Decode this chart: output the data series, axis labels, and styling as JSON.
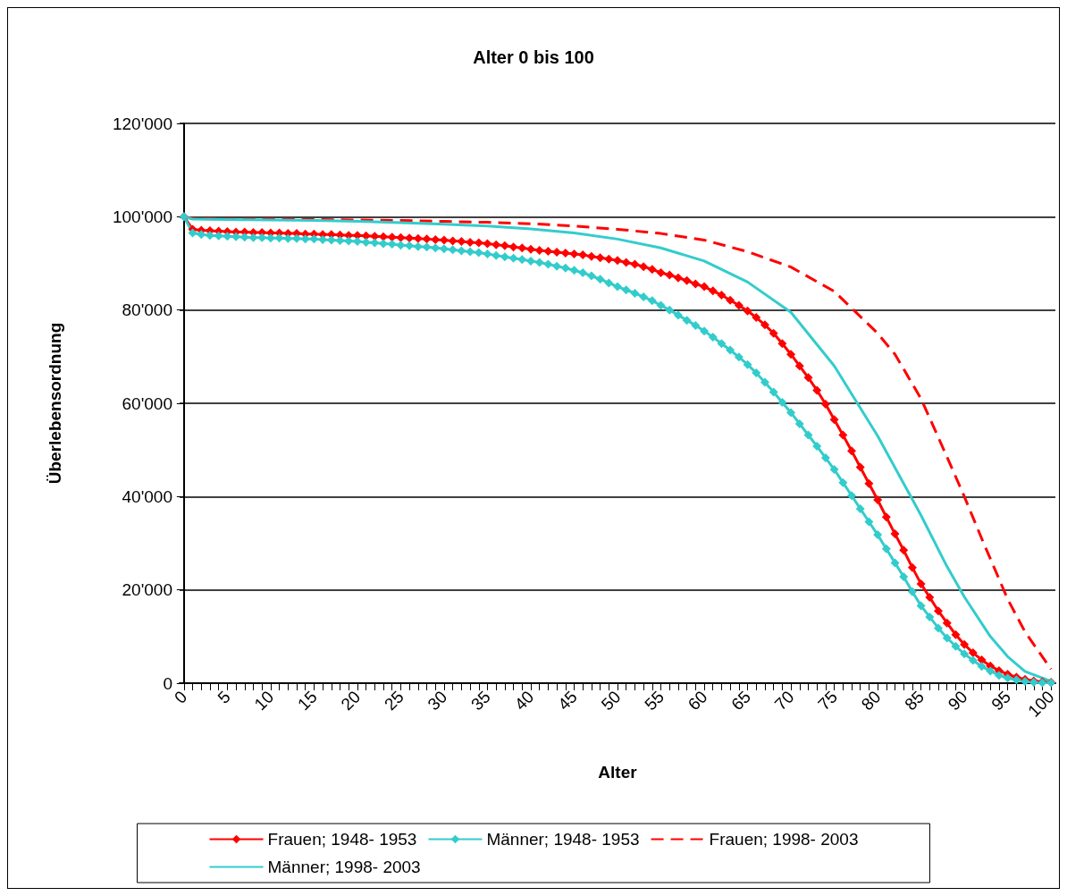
{
  "chart_data": {
    "type": "line",
    "title": "Alter 0 bis 100",
    "xlabel": "Alter",
    "ylabel": "Überlebensordnung",
    "xlim": [
      -0.5,
      100.5
    ],
    "xticks": [
      0,
      {
        "value": 1,
        "label": null
      },
      {
        "value": 2,
        "label": null
      },
      {
        "value": 3,
        "label": null
      },
      {
        "value": 4,
        "label": null
      },
      5,
      {
        "value": 6,
        "label": null
      },
      {
        "value": 7,
        "label": null
      },
      {
        "value": 8,
        "label": null
      },
      {
        "value": 9,
        "label": null
      },
      10,
      {
        "value": 11,
        "label": null
      },
      {
        "value": 12,
        "label": null
      },
      {
        "value": 13,
        "label": null
      },
      {
        "value": 14,
        "label": null
      },
      15,
      {
        "value": 16,
        "label": null
      },
      {
        "value": 17,
        "label": null
      },
      {
        "value": 18,
        "label": null
      },
      {
        "value": 19,
        "label": null
      },
      20,
      {
        "value": 21,
        "label": null
      },
      {
        "value": 22,
        "label": null
      },
      {
        "value": 23,
        "label": null
      },
      {
        "value": 24,
        "label": null
      },
      25,
      {
        "value": 26,
        "label": null
      },
      {
        "value": 27,
        "label": null
      },
      {
        "value": 28,
        "label": null
      },
      {
        "value": 29,
        "label": null
      },
      30,
      {
        "value": 31,
        "label": null
      },
      {
        "value": 32,
        "label": null
      },
      {
        "value": 33,
        "label": null
      },
      {
        "value": 34,
        "label": null
      },
      35,
      {
        "value": 36,
        "label": null
      },
      {
        "value": 37,
        "label": null
      },
      {
        "value": 38,
        "label": null
      },
      {
        "value": 39,
        "label": null
      },
      40,
      {
        "value": 41,
        "label": null
      },
      {
        "value": 42,
        "label": null
      },
      {
        "value": 43,
        "label": null
      },
      {
        "value": 44,
        "label": null
      },
      45,
      {
        "value": 46,
        "label": null
      },
      {
        "value": 47,
        "label": null
      },
      {
        "value": 48,
        "label": null
      },
      {
        "value": 49,
        "label": null
      },
      50,
      {
        "value": 51,
        "label": null
      },
      {
        "value": 52,
        "label": null
      },
      {
        "value": 53,
        "label": null
      },
      {
        "value": 54,
        "label": null
      },
      55,
      {
        "value": 56,
        "label": null
      },
      {
        "value": 57,
        "label": null
      },
      {
        "value": 58,
        "label": null
      },
      {
        "value": 59,
        "label": null
      },
      60,
      {
        "value": 61,
        "label": null
      },
      {
        "value": 62,
        "label": null
      },
      {
        "value": 63,
        "label": null
      },
      {
        "value": 64,
        "label": null
      },
      65,
      {
        "value": 66,
        "label": null
      },
      {
        "value": 67,
        "label": null
      },
      {
        "value": 68,
        "label": null
      },
      {
        "value": 69,
        "label": null
      },
      70,
      {
        "value": 71,
        "label": null
      },
      {
        "value": 72,
        "label": null
      },
      {
        "value": 73,
        "label": null
      },
      {
        "value": 74,
        "label": null
      },
      75,
      {
        "value": 76,
        "label": null
      },
      {
        "value": 77,
        "label": null
      },
      {
        "value": 78,
        "label": null
      },
      {
        "value": 79,
        "label": null
      },
      80,
      {
        "value": 81,
        "label": null
      },
      {
        "value": 82,
        "label": null
      },
      {
        "value": 83,
        "label": null
      },
      {
        "value": 84,
        "label": null
      },
      85,
      {
        "value": 86,
        "label": null
      },
      {
        "value": 87,
        "label": null
      },
      {
        "value": 88,
        "label": null
      },
      {
        "value": 89,
        "label": null
      },
      90,
      {
        "value": 91,
        "label": null
      },
      {
        "value": 92,
        "label": null
      },
      {
        "value": 93,
        "label": null
      },
      {
        "value": 94,
        "label": null
      },
      95,
      {
        "value": 96,
        "label": null
      },
      {
        "value": 97,
        "label": null
      },
      {
        "value": 98,
        "label": null
      },
      {
        "value": 99,
        "label": null
      },
      100
    ],
    "ylim": [
      0,
      120000
    ],
    "yticks": [
      {
        "value": 0,
        "label": "0"
      },
      {
        "value": 20000,
        "label": "20'000"
      },
      {
        "value": 40000,
        "label": "40'000"
      },
      {
        "value": 60000,
        "label": "60'000"
      },
      {
        "value": 80000,
        "label": "80'000"
      },
      {
        "value": 100000,
        "label": "100'000"
      },
      {
        "value": 120000,
        "label": "120'000"
      }
    ],
    "grid": "y",
    "legend": "bottom",
    "series": [
      {
        "name": "Frauen; 1948- 1953",
        "color": "#ff0000",
        "marker": "diamond",
        "line_style": "solid",
        "x": [
          0,
          1,
          2,
          3,
          4,
          5,
          6,
          7,
          8,
          9,
          10,
          11,
          12,
          13,
          14,
          15,
          16,
          17,
          18,
          19,
          20,
          21,
          22,
          23,
          24,
          25,
          26,
          27,
          28,
          29,
          30,
          31,
          32,
          33,
          34,
          35,
          36,
          37,
          38,
          39,
          40,
          41,
          42,
          43,
          44,
          45,
          46,
          47,
          48,
          49,
          50,
          51,
          52,
          53,
          54,
          55,
          56,
          57,
          58,
          59,
          60,
          61,
          62,
          63,
          64,
          65,
          66,
          67,
          68,
          69,
          70,
          71,
          72,
          73,
          74,
          75,
          76,
          77,
          78,
          79,
          80,
          81,
          82,
          83,
          84,
          85,
          86,
          87,
          88,
          89,
          90,
          91,
          92,
          93,
          94,
          95,
          96,
          97,
          98,
          99,
          100
        ],
        "values": [
          100000,
          97300,
          97100,
          97000,
          96900,
          96800,
          96700,
          96700,
          96600,
          96600,
          96500,
          96500,
          96400,
          96400,
          96300,
          96300,
          96200,
          96200,
          96100,
          96000,
          96000,
          95900,
          95800,
          95700,
          95600,
          95500,
          95400,
          95300,
          95200,
          95100,
          95000,
          94800,
          94700,
          94500,
          94400,
          94200,
          94000,
          93800,
          93500,
          93300,
          93000,
          92800,
          92600,
          92400,
          92200,
          92000,
          91800,
          91500,
          91200,
          90900,
          90600,
          90200,
          89800,
          89300,
          88700,
          88000,
          87500,
          86900,
          86300,
          85600,
          85000,
          84100,
          83200,
          82100,
          81000,
          79800,
          78400,
          76800,
          75000,
          72800,
          70500,
          68000,
          65500,
          62800,
          59800,
          56500,
          53200,
          49800,
          46300,
          42800,
          39300,
          35600,
          32000,
          28500,
          24800,
          21300,
          18400,
          15500,
          12900,
          10400,
          8300,
          6500,
          5000,
          3700,
          2700,
          1900,
          1300,
          800,
          500,
          300,
          200
        ]
      },
      {
        "name": "Männer; 1948- 1953",
        "color": "#33cccc",
        "marker": "diamond",
        "line_style": "solid",
        "x": [
          0,
          1,
          2,
          3,
          4,
          5,
          6,
          7,
          8,
          9,
          10,
          11,
          12,
          13,
          14,
          15,
          16,
          17,
          18,
          19,
          20,
          21,
          22,
          23,
          24,
          25,
          26,
          27,
          28,
          29,
          30,
          31,
          32,
          33,
          34,
          35,
          36,
          37,
          38,
          39,
          40,
          41,
          42,
          43,
          44,
          45,
          46,
          47,
          48,
          49,
          50,
          51,
          52,
          53,
          54,
          55,
          56,
          57,
          58,
          59,
          60,
          61,
          62,
          63,
          64,
          65,
          66,
          67,
          68,
          69,
          70,
          71,
          72,
          73,
          74,
          75,
          76,
          77,
          78,
          79,
          80,
          81,
          82,
          83,
          84,
          85,
          86,
          87,
          88,
          89,
          90,
          91,
          92,
          93,
          94,
          95,
          96,
          97,
          98,
          99,
          100
        ],
        "values": [
          100000,
          96500,
          96200,
          96000,
          95900,
          95800,
          95700,
          95600,
          95500,
          95500,
          95400,
          95400,
          95300,
          95300,
          95200,
          95200,
          95100,
          95000,
          94900,
          94800,
          94700,
          94500,
          94400,
          94200,
          94100,
          93900,
          93800,
          93600,
          93500,
          93300,
          93100,
          92900,
          92700,
          92500,
          92300,
          92000,
          91700,
          91400,
          91100,
          90800,
          90500,
          90200,
          89800,
          89400,
          89000,
          88500,
          88000,
          87300,
          86600,
          85800,
          85000,
          84300,
          83600,
          82800,
          82000,
          81000,
          80000,
          78900,
          77800,
          76700,
          75500,
          74200,
          72800,
          71400,
          69900,
          68300,
          66500,
          64500,
          62400,
          60200,
          58000,
          55600,
          53200,
          50800,
          48300,
          45800,
          43000,
          40200,
          37400,
          34600,
          31800,
          28800,
          25800,
          22800,
          19600,
          16600,
          14200,
          11800,
          9700,
          7900,
          6300,
          4900,
          3600,
          2600,
          1700,
          1100,
          700,
          400,
          200,
          100,
          100
        ]
      },
      {
        "name": "Frauen; 1998- 2003",
        "color": "#ff0000",
        "marker": "none",
        "line_style": "dashed",
        "x": [
          0,
          1,
          5,
          10,
          15,
          20,
          25,
          30,
          35,
          40,
          45,
          50,
          55,
          60,
          65,
          70,
          75,
          80,
          82,
          85,
          88,
          90,
          92,
          95,
          97,
          100
        ],
        "values": [
          100000,
          99600,
          99500,
          99500,
          99400,
          99300,
          99200,
          99000,
          98800,
          98500,
          98000,
          97300,
          96400,
          95000,
          92500,
          89200,
          84000,
          75000,
          70500,
          61000,
          48500,
          40000,
          31000,
          18000,
          11000,
          3000
        ]
      },
      {
        "name": "Männer; 1998- 2003",
        "color": "#33cccc",
        "marker": "none",
        "line_style": "solid",
        "x": [
          0,
          1,
          5,
          10,
          15,
          20,
          25,
          30,
          35,
          40,
          45,
          50,
          55,
          60,
          65,
          70,
          75,
          80,
          85,
          88,
          90,
          93,
          95,
          97,
          100
        ],
        "values": [
          100000,
          99500,
          99400,
          99300,
          99200,
          99000,
          98700,
          98400,
          98000,
          97400,
          96500,
          95200,
          93300,
          90500,
          86000,
          79500,
          68000,
          53000,
          36000,
          25000,
          18500,
          10000,
          5700,
          2500,
          400
        ]
      }
    ]
  }
}
